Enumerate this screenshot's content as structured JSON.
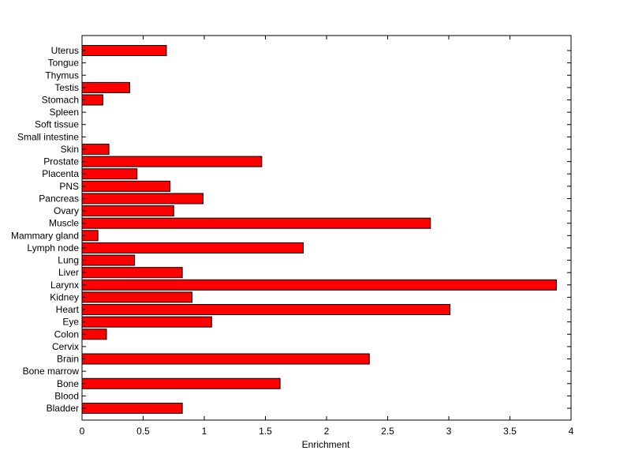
{
  "chart_data": {
    "type": "bar",
    "orientation": "horizontal",
    "title": "",
    "xlabel": "Enrichment",
    "ylabel": "",
    "xlim": [
      0,
      4
    ],
    "xticks": [
      "0",
      "0.5",
      "1",
      "1.5",
      "2",
      "2.5",
      "3",
      "3.5",
      "4"
    ],
    "grid": false,
    "bar_color": "#ff0000",
    "edge_color": "#000000",
    "categories": [
      "Bladder",
      "Blood",
      "Bone",
      "Bone marrow",
      "Brain",
      "Cervix",
      "Colon",
      "Eye",
      "Heart",
      "Kidney",
      "Larynx",
      "Liver",
      "Lung",
      "Lymph node",
      "Mammary gland",
      "Muscle",
      "Ovary",
      "Pancreas",
      "PNS",
      "Placenta",
      "Prostate",
      "Skin",
      "Small intestine",
      "Soft tissue",
      "Spleen",
      "Stomach",
      "Testis",
      "Thymus",
      "Tongue",
      "Uterus"
    ],
    "values": [
      0.82,
      0,
      1.62,
      0,
      2.35,
      0,
      0.2,
      1.06,
      3.01,
      0.9,
      3.88,
      0.82,
      0.43,
      1.81,
      0.13,
      2.85,
      0.75,
      0.99,
      0.72,
      0.45,
      1.47,
      0.22,
      0,
      0,
      0,
      0.17,
      0.39,
      0,
      0,
      0.69
    ]
  }
}
